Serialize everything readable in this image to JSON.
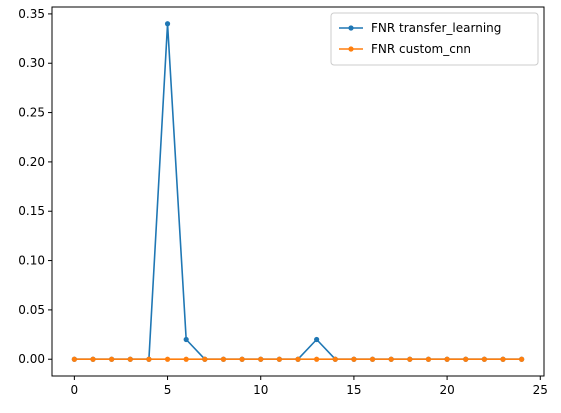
{
  "chart_data": {
    "type": "line",
    "title": "",
    "xlabel": "",
    "ylabel": "",
    "x": [
      0,
      1,
      2,
      3,
      4,
      5,
      6,
      7,
      8,
      9,
      10,
      11,
      12,
      13,
      14,
      15,
      16,
      17,
      18,
      19,
      20,
      21,
      22,
      23,
      24
    ],
    "series": [
      {
        "name": "FNR transfer_learning",
        "color": "#1f77b4",
        "values": [
          0,
          0,
          0,
          0,
          0,
          0.34,
          0.02,
          0,
          0,
          0,
          0,
          0,
          0,
          0.02,
          0,
          0,
          0,
          0,
          0,
          0,
          0,
          0,
          0,
          0,
          0
        ]
      },
      {
        "name": "FNR custom_cnn",
        "color": "#ff7f0e",
        "values": [
          0,
          0,
          0,
          0,
          0,
          0,
          0,
          0,
          0,
          0,
          0,
          0,
          0,
          0,
          0,
          0,
          0,
          0,
          0,
          0,
          0,
          0,
          0,
          0,
          0
        ]
      }
    ],
    "xlim": [
      -1.2,
      25.2
    ],
    "ylim": [
      -0.017,
      0.357
    ],
    "xticks": [
      0,
      5,
      10,
      15,
      20,
      25
    ],
    "xtick_labels": [
      "0",
      "5",
      "10",
      "15",
      "20",
      "25"
    ],
    "yticks": [
      0.0,
      0.05,
      0.1,
      0.15,
      0.2,
      0.25,
      0.3,
      0.35
    ],
    "ytick_labels": [
      "0.00",
      "0.05",
      "0.10",
      "0.15",
      "0.20",
      "0.25",
      "0.30",
      "0.35"
    ],
    "grid": false,
    "legend_position": "upper right"
  }
}
